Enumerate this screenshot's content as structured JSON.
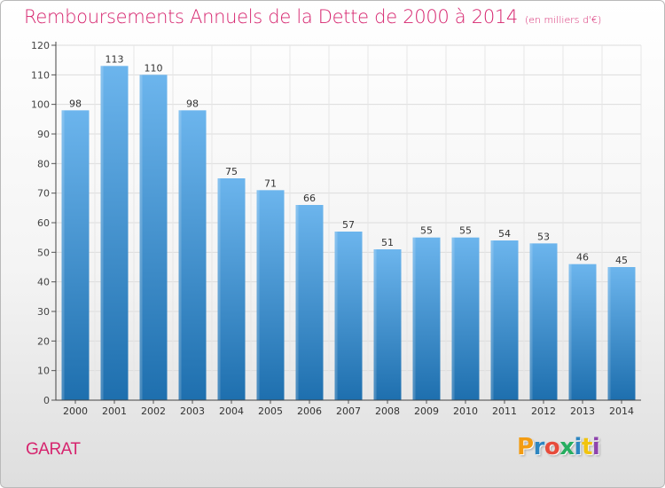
{
  "header": {
    "title": "Remboursements Annuels de la Dette de 2000 à 2014",
    "unit": "(en milliers d'€)"
  },
  "footer": {
    "commune": "GARAT",
    "logo_text": "Proxiti",
    "logo_letter_colors": [
      "#f39c12",
      "#2e86c1",
      "#e74c3c",
      "#27ae60",
      "#2e86c1",
      "#f1c40f",
      "#8e44ad"
    ]
  },
  "colors": {
    "accent": "#d6246e",
    "bar_top": "#6cb5ed",
    "bar_bottom": "#1e6fae"
  },
  "chart_data": {
    "type": "bar",
    "categories": [
      "2000",
      "2001",
      "2002",
      "2003",
      "2004",
      "2005",
      "2006",
      "2007",
      "2008",
      "2009",
      "2010",
      "2011",
      "2012",
      "2013",
      "2014"
    ],
    "values": [
      98,
      113,
      110,
      98,
      75,
      71,
      66,
      57,
      51,
      55,
      55,
      54,
      53,
      46,
      45
    ],
    "title": "Remboursements Annuels de la Dette de 2000 à 2014",
    "xlabel": "",
    "ylabel": "",
    "ylim": [
      0,
      120
    ],
    "yticks": [
      0,
      10,
      20,
      30,
      40,
      50,
      60,
      70,
      80,
      90,
      100,
      110,
      120
    ],
    "grid": true,
    "data_labels": true
  }
}
